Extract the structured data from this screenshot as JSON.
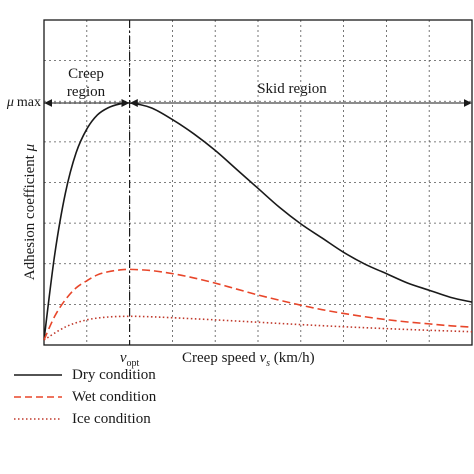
{
  "chart_data": {
    "type": "line",
    "xlabel_prefix": "Creep speed ",
    "xlabel_var": "v",
    "xlabel_sub": "s",
    "xlabel_unit": " (km/h)",
    "ylabel_prefix": "Adhesion coefficient ",
    "ylabel_var": "μ",
    "ymax_var": "μ",
    "ymax_word": "max",
    "vopt_var": "v",
    "vopt_sub": "opt",
    "x_range": [
      0,
      10
    ],
    "y_range": [
      0,
      10
    ],
    "x_opt": 2.0,
    "grid": true,
    "grid_divisions_x": 10,
    "grid_divisions_y": 8,
    "legend_position": "bottom-left",
    "regions": [
      {
        "label_lines": [
          "Creep",
          "region"
        ]
      },
      {
        "label_lines": [
          "Skid region"
        ]
      }
    ],
    "series": [
      {
        "name": "Dry condition",
        "color": "#1a1a1a",
        "style": "solid",
        "x": [
          0,
          0.25,
          0.5,
          0.75,
          1.0,
          1.25,
          1.5,
          1.75,
          2.0,
          2.5,
          3.0,
          3.5,
          4.0,
          4.5,
          5.0,
          5.5,
          6.0,
          6.5,
          7.0,
          7.5,
          8.0,
          8.5,
          9.0,
          9.5,
          10.0
        ],
        "values": [
          0,
          3.6,
          6.2,
          7.9,
          8.9,
          9.5,
          9.8,
          9.95,
          10.0,
          9.8,
          9.3,
          8.7,
          8.0,
          7.2,
          6.4,
          5.6,
          4.9,
          4.3,
          3.7,
          3.2,
          2.8,
          2.4,
          2.1,
          1.8,
          1.6
        ]
      },
      {
        "name": "Wet condition",
        "color": "#e8462a",
        "style": "dashed",
        "x": [
          0,
          0.25,
          0.5,
          0.75,
          1.0,
          1.25,
          1.5,
          1.75,
          2.0,
          2.5,
          3.0,
          3.5,
          4.0,
          4.5,
          5.0,
          5.5,
          6.0,
          6.5,
          7.0,
          7.5,
          8.0,
          8.5,
          9.0,
          9.5,
          10.0
        ],
        "values": [
          0,
          1.0,
          1.7,
          2.2,
          2.5,
          2.75,
          2.88,
          2.95,
          2.98,
          2.93,
          2.8,
          2.62,
          2.4,
          2.15,
          1.9,
          1.68,
          1.47,
          1.28,
          1.12,
          0.98,
          0.86,
          0.76,
          0.68,
          0.6,
          0.54
        ]
      },
      {
        "name": "Ice condition",
        "color": "#c0392b",
        "style": "dotted",
        "x": [
          0,
          0.5,
          1.0,
          1.5,
          2.0,
          2.5,
          3.0,
          4.0,
          5.0,
          6.0,
          7.0,
          8.0,
          9.0,
          10.0
        ],
        "values": [
          0,
          0.55,
          0.85,
          0.97,
          1.0,
          0.98,
          0.94,
          0.85,
          0.75,
          0.65,
          0.56,
          0.48,
          0.41,
          0.35
        ]
      }
    ]
  }
}
